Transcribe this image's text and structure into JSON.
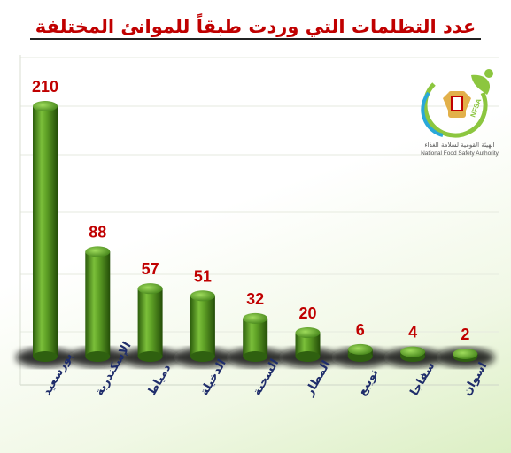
{
  "title": "عدد التظلمات التي وردت طبقاً للموانئ المختلفة",
  "logo": {
    "name_ar": "الهيئة القومية لسلامة الغذاء",
    "name_en": "National Food Safety Authority",
    "mark": "NFSA",
    "colors": {
      "ring": "#8cc63f",
      "accent": "#29a8d9",
      "eagle": "#e2b04a"
    }
  },
  "colors": {
    "bar": "#4e8f1f",
    "label": "#c00000",
    "category": "#1f2d6b",
    "shadow": "#2a2a2a"
  },
  "chart_data": {
    "type": "bar",
    "title": "عدد التظلمات التي وردت طبقاً للموانئ المختلفة",
    "categories": [
      "بورسعيد",
      "الإسكندرية",
      "دمياط",
      "الدخيلة",
      "السخنة",
      "المطار",
      "نويبع",
      "سفاجا",
      "اسوان"
    ],
    "values": [
      210,
      88,
      57,
      51,
      32,
      20,
      6,
      4,
      2
    ],
    "ylim": [
      0,
      220
    ],
    "grid": true,
    "legend": "none"
  }
}
